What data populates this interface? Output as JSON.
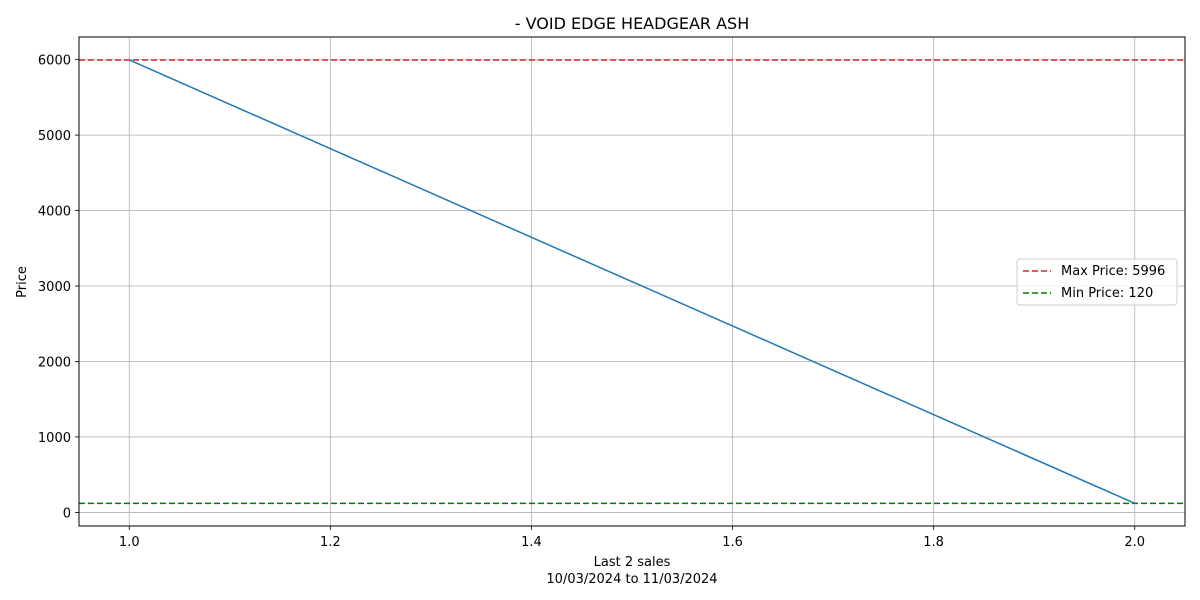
{
  "chart_data": {
    "type": "line",
    "title": "- VOID EDGE HEADGEAR ASH",
    "xlabel": "Last 2 sales",
    "xlabel_sub": "10/03/2024 to 11/03/2024",
    "ylabel": "Price",
    "xlim": [
      0.95,
      2.05
    ],
    "ylim": [
      -180,
      6300
    ],
    "x_ticks": [
      1.0,
      1.2,
      1.4,
      1.6,
      1.8,
      2.0
    ],
    "x_tick_labels": [
      "1.0",
      "1.2",
      "1.4",
      "1.6",
      "1.8",
      "2.0"
    ],
    "y_ticks": [
      0,
      1000,
      2000,
      3000,
      4000,
      5000,
      6000
    ],
    "y_tick_labels": [
      "0",
      "1000",
      "2000",
      "3000",
      "4000",
      "5000",
      "6000"
    ],
    "grid": true,
    "series": [
      {
        "x": [
          1,
          2
        ],
        "y": [
          5996,
          120
        ],
        "color": "#1f77b4"
      }
    ],
    "reference_lines": [
      {
        "name": "Max Price: 5996",
        "value": 5996,
        "color": "#d62728",
        "style": "dashed"
      },
      {
        "name": "Min Price: 120",
        "value": 120,
        "color": "#008000",
        "style": "dashed"
      }
    ],
    "legend_position": "center-right"
  }
}
